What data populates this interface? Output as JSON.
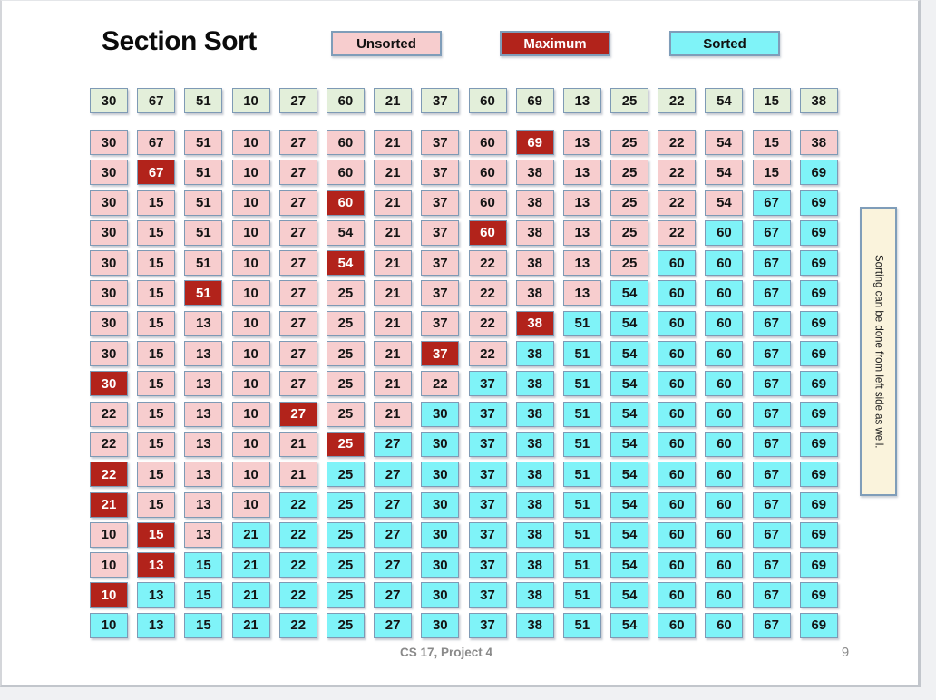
{
  "title": "Section Sort",
  "legend": [
    {
      "label": "Unsorted",
      "state": "unsorted"
    },
    {
      "label": "Maximum",
      "state": "max"
    },
    {
      "label": "Sorted",
      "state": "sorted"
    }
  ],
  "colors": {
    "initial": "#E3EFDA",
    "unsorted": "#F7CDCE",
    "max": "#B2231B",
    "sorted": "#7FF3F8",
    "cell_border": "#7E9AB5",
    "shape_border": "#7F9DB9",
    "note_bg": "#FAF3DC"
  },
  "state_codes": {
    "i": "initial",
    "u": "unsorted",
    "m": "max",
    "s": "sorted"
  },
  "grid": {
    "columns": 16,
    "rows": [
      {
        "values": [
          30,
          67,
          51,
          10,
          27,
          60,
          21,
          37,
          60,
          69,
          13,
          25,
          22,
          54,
          15,
          38
        ],
        "states": "iiiiiiiiiiiiiiii"
      },
      {
        "values": [
          30,
          67,
          51,
          10,
          27,
          60,
          21,
          37,
          60,
          69,
          13,
          25,
          22,
          54,
          15,
          38
        ],
        "states": "uuuuuuuuumuuuuuu"
      },
      {
        "values": [
          30,
          67,
          51,
          10,
          27,
          60,
          21,
          37,
          60,
          38,
          13,
          25,
          22,
          54,
          15,
          69
        ],
        "states": "umuuuuuuuuuuuuus"
      },
      {
        "values": [
          30,
          15,
          51,
          10,
          27,
          60,
          21,
          37,
          60,
          38,
          13,
          25,
          22,
          54,
          67,
          69
        ],
        "states": "uuuuumuuuuuuuuss"
      },
      {
        "values": [
          30,
          15,
          51,
          10,
          27,
          54,
          21,
          37,
          60,
          38,
          13,
          25,
          22,
          60,
          67,
          69
        ],
        "states": "uuuuuuuumuuuusss"
      },
      {
        "values": [
          30,
          15,
          51,
          10,
          27,
          54,
          21,
          37,
          22,
          38,
          13,
          25,
          60,
          60,
          67,
          69
        ],
        "states": "uuuuumuuuuuussss"
      },
      {
        "values": [
          30,
          15,
          51,
          10,
          27,
          25,
          21,
          37,
          22,
          38,
          13,
          54,
          60,
          60,
          67,
          69
        ],
        "states": "uumuuuuuuuusssss"
      },
      {
        "values": [
          30,
          15,
          13,
          10,
          27,
          25,
          21,
          37,
          22,
          38,
          51,
          54,
          60,
          60,
          67,
          69
        ],
        "states": "uuuuuuuuumssssss"
      },
      {
        "values": [
          30,
          15,
          13,
          10,
          27,
          25,
          21,
          37,
          22,
          38,
          51,
          54,
          60,
          60,
          67,
          69
        ],
        "states": "uuuuuuumusssssss"
      },
      {
        "values": [
          30,
          15,
          13,
          10,
          27,
          25,
          21,
          22,
          37,
          38,
          51,
          54,
          60,
          60,
          67,
          69
        ],
        "states": "muuuuuuussssssss"
      },
      {
        "values": [
          22,
          15,
          13,
          10,
          27,
          25,
          21,
          30,
          37,
          38,
          51,
          54,
          60,
          60,
          67,
          69
        ],
        "states": "uuuumuusssssssss"
      },
      {
        "values": [
          22,
          15,
          13,
          10,
          21,
          25,
          27,
          30,
          37,
          38,
          51,
          54,
          60,
          60,
          67,
          69
        ],
        "states": "uuuuumssssssssss"
      },
      {
        "values": [
          22,
          15,
          13,
          10,
          21,
          25,
          27,
          30,
          37,
          38,
          51,
          54,
          60,
          60,
          67,
          69
        ],
        "states": "muuuusssssssssss"
      },
      {
        "values": [
          21,
          15,
          13,
          10,
          22,
          25,
          27,
          30,
          37,
          38,
          51,
          54,
          60,
          60,
          67,
          69
        ],
        "states": "muuussssssssssss"
      },
      {
        "values": [
          10,
          15,
          13,
          21,
          22,
          25,
          27,
          30,
          37,
          38,
          51,
          54,
          60,
          60,
          67,
          69
        ],
        "states": "umusssssssssssss"
      },
      {
        "values": [
          10,
          13,
          15,
          21,
          22,
          25,
          27,
          30,
          37,
          38,
          51,
          54,
          60,
          60,
          67,
          69
        ],
        "states": "umssssssssssssss"
      },
      {
        "values": [
          10,
          13,
          15,
          21,
          22,
          25,
          27,
          30,
          37,
          38,
          51,
          54,
          60,
          60,
          67,
          69
        ],
        "states": "msssssssssssssss"
      },
      {
        "values": [
          10,
          13,
          15,
          21,
          22,
          25,
          27,
          30,
          37,
          38,
          51,
          54,
          60,
          60,
          67,
          69
        ],
        "states": "ssssssssssssssss"
      }
    ]
  },
  "side_note": "Sorting can be done from left side as well.",
  "footer": {
    "text": "CS 17, Project 4",
    "page_number": "9"
  }
}
